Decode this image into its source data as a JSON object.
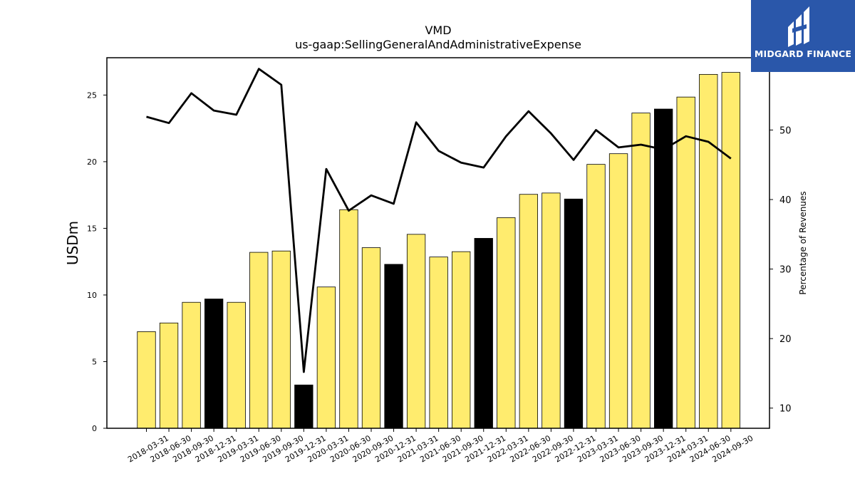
{
  "chart_data": {
    "type": "bar",
    "title": "VMD",
    "subtitle": "us-gaap:SellingGeneralAndAdministrativeExpense",
    "ylabel": "USDm",
    "y2label": "Percentage of Revenues",
    "ylim": [
      0,
      27.8
    ],
    "y2lim": [
      7.1,
      60.4
    ],
    "yticks": [
      0,
      5,
      10,
      15,
      20,
      25
    ],
    "y2ticks": [
      10,
      20,
      30,
      40,
      50
    ],
    "categories": [
      "2018-03-31",
      "2018-06-30",
      "2018-09-30",
      "2018-12-31",
      "2019-03-31",
      "2019-06-30",
      "2019-09-30",
      "2019-12-31",
      "2020-03-31",
      "2020-06-30",
      "2020-09-30",
      "2020-12-31",
      "2021-03-31",
      "2021-06-30",
      "2021-09-30",
      "2021-12-31",
      "2022-03-31",
      "2022-06-30",
      "2022-09-30",
      "2022-12-31",
      "2023-03-31",
      "2023-06-30",
      "2023-09-30",
      "2023-12-31",
      "2024-03-31",
      "2024-06-30",
      "2024-09-30"
    ],
    "series": [
      {
        "name": "",
        "type": "bar",
        "values": [
          7.25,
          7.9,
          9.45,
          9.7,
          9.45,
          13.2,
          13.3,
          3.25,
          10.6,
          16.4,
          13.55,
          12.3,
          14.55,
          12.85,
          13.25,
          14.25,
          15.8,
          17.55,
          17.65,
          17.2,
          19.8,
          20.6,
          23.65,
          23.95,
          24.85,
          26.55,
          26.7
        ],
        "colors": [
          "#ffec6e",
          "#ffec6e",
          "#ffec6e",
          "#000000",
          "#ffec6e",
          "#ffec6e",
          "#ffec6e",
          "#000000",
          "#ffec6e",
          "#ffec6e",
          "#ffec6e",
          "#000000",
          "#ffec6e",
          "#ffec6e",
          "#ffec6e",
          "#000000",
          "#ffec6e",
          "#ffec6e",
          "#ffec6e",
          "#000000",
          "#ffec6e",
          "#ffec6e",
          "#ffec6e",
          "#000000",
          "#ffec6e",
          "#ffec6e",
          "#ffec6e"
        ]
      },
      {
        "name": "",
        "type": "line",
        "axis": "right",
        "values": [
          51.9,
          51.0,
          55.3,
          52.8,
          52.2,
          58.8,
          56.5,
          15.2,
          44.4,
          38.4,
          40.6,
          39.4,
          51.1,
          47.0,
          45.3,
          44.6,
          49.1,
          52.7,
          49.5,
          45.7,
          50.0,
          47.5,
          47.9,
          47.2,
          49.1,
          48.3,
          45.9
        ]
      }
    ],
    "grid": false,
    "legend": "none"
  },
  "logo": {
    "name": "MIDGARD FINANCE",
    "bg": "#2a57aa"
  }
}
